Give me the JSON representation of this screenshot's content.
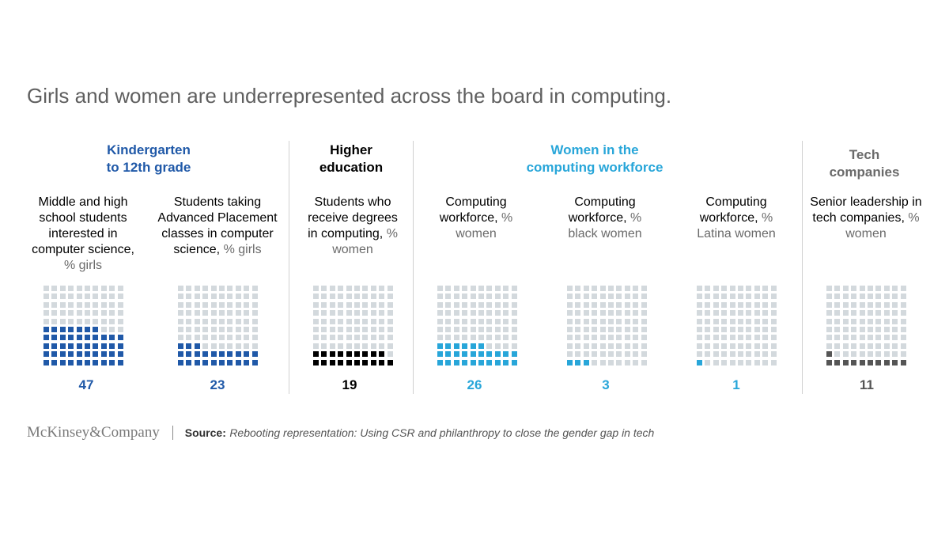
{
  "title": "Girls and women are underrepresented across the board in computing.",
  "groups": [
    {
      "title_line1": "Kindergarten",
      "title_line2": "to 12th grade",
      "color": "#2059a8"
    },
    {
      "title_line1": "Higher",
      "title_line2": "education",
      "color": "#000000"
    },
    {
      "title_line1": "Women in the",
      "title_line2": "computing workforce",
      "color": "#28a6d9"
    },
    {
      "title_line1": "Tech",
      "title_line2": "companies",
      "color": "#6a6a6a"
    }
  ],
  "columns": [
    {
      "label_main": "Middle and high school students interested in computer science,",
      "label_unit": "% girls",
      "value_text": "47"
    },
    {
      "label_main": "Students taking Advanced Placement classes in computer science,",
      "label_unit": "% girls",
      "value_text": "23"
    },
    {
      "label_main": "Students who receive degrees in computing,",
      "label_unit": "% women",
      "value_text": "19"
    },
    {
      "label_main": "Computing workforce,",
      "label_unit": "% women",
      "value_text": "26"
    },
    {
      "label_main": "Computing workforce,",
      "label_unit": "% black women",
      "value_text": "3"
    },
    {
      "label_main": "Computing workforce,",
      "label_unit": "% Latina women",
      "value_text": "1"
    },
    {
      "label_main": "Senior leadership in tech companies,",
      "label_unit": "% women",
      "value_text": "11"
    }
  ],
  "chart_data": {
    "type": "waffle",
    "title": "Girls and women are underrepresented across the board in computing.",
    "grid": "10x10",
    "categories": [
      "Middle and high school students interested in computer science, % girls",
      "Students taking Advanced Placement classes in computer science, % girls",
      "Students who receive degrees in computing, % women",
      "Computing workforce, % women",
      "Computing workforce, % black women",
      "Computing workforce, % Latina women",
      "Senior leadership in tech companies, % women"
    ],
    "values": [
      47,
      23,
      19,
      26,
      3,
      1,
      11
    ],
    "colors": [
      "#2059a8",
      "#2059a8",
      "#000000",
      "#28a6d9",
      "#28a6d9",
      "#28a6d9",
      "#555555"
    ],
    "empty_color": "#d3d9dd"
  },
  "footer": {
    "logo": "McKinsey&Company",
    "source_label": "Source:",
    "source_text": "Rebooting representation: Using CSR and philanthropy to close the gender gap in tech"
  }
}
